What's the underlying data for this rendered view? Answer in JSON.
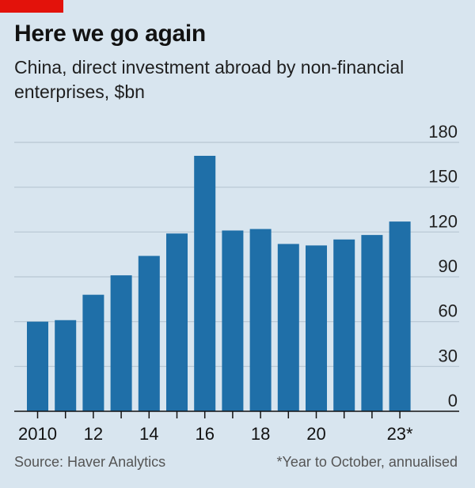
{
  "header": {
    "title": "Here we go again",
    "subtitle": "China, direct investment abroad by non-financial enterprises, $bn"
  },
  "footer": {
    "source": "Source: Haver Analytics",
    "note": "*Year to October, annualised"
  },
  "colors": {
    "background": "#d8e5ef",
    "bar": "#1f6fa8",
    "brand_tag": "#e3120b",
    "gridline": "#b7c6d2"
  },
  "chart_data": {
    "type": "bar",
    "categories": [
      "2010",
      "2011",
      "2012",
      "2013",
      "2014",
      "2015",
      "2016",
      "2017",
      "2018",
      "2019",
      "2020",
      "2021",
      "2022",
      "2023*"
    ],
    "values": [
      60,
      61,
      78,
      91,
      104,
      119,
      171,
      121,
      122,
      112,
      111,
      115,
      118,
      127
    ],
    "x_tick_labels": [
      "2010",
      "",
      "12",
      "",
      "14",
      "",
      "16",
      "",
      "18",
      "",
      "20",
      "",
      "",
      "23*"
    ],
    "y_ticks": [
      0,
      30,
      60,
      90,
      120,
      150,
      180
    ],
    "ylim": [
      0,
      180
    ],
    "y_axis_side": "right",
    "grid": true,
    "title": "Here we go again",
    "xlabel": "",
    "ylabel": ""
  }
}
